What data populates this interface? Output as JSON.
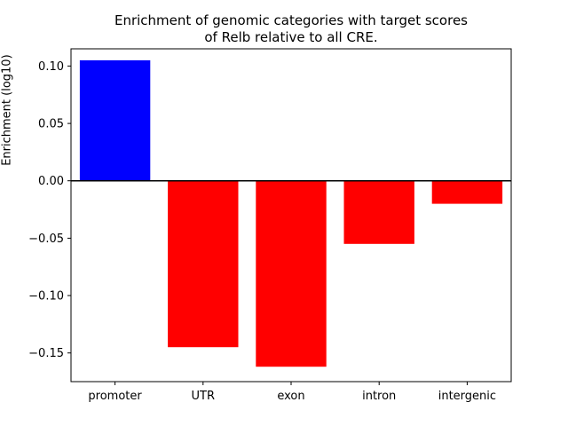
{
  "figure": {
    "title_line1": "Enrichment of genomic categories with target scores",
    "title_line2": "of Relb relative to all CRE."
  },
  "chart_data": {
    "type": "bar",
    "title": "Enrichment of genomic categories with target scores of Relb relative to all CRE.",
    "categories": [
      "promoter",
      "UTR",
      "exon",
      "intron",
      "intergenic"
    ],
    "values": [
      0.105,
      -0.145,
      -0.162,
      -0.055,
      -0.02
    ],
    "bar_colors": [
      "#0000ff",
      "#ff0000",
      "#ff0000",
      "#ff0000",
      "#ff0000"
    ],
    "positive_color": "#0000ff",
    "negative_color": "#ff0000",
    "xlabel": "",
    "ylabel": "Enrichment (log10)",
    "ylim": [
      -0.175,
      0.115
    ],
    "yticks": [
      0.1,
      0.05,
      0.0,
      -0.05,
      -0.1,
      -0.15
    ],
    "ytick_labels": [
      "0.10",
      "0.05",
      "0.00",
      "−0.05",
      "−0.10",
      "−0.15"
    ],
    "zero_line": true,
    "grid": false,
    "legend": "none",
    "axis_color": "#000000",
    "background_color": "#ffffff"
  }
}
